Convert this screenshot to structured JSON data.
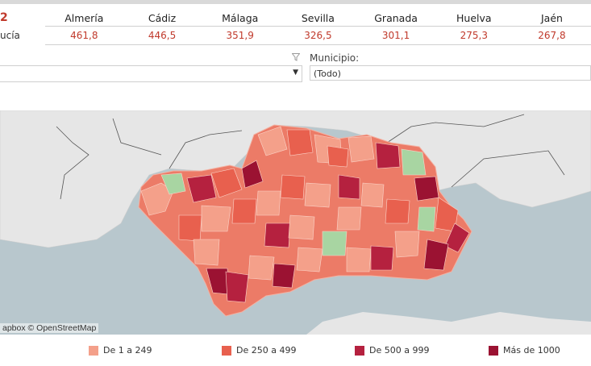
{
  "summary": {
    "value_fragment": "2",
    "region_fragment": "ucía"
  },
  "provinces": [
    {
      "name": "Almería",
      "value": "461,8"
    },
    {
      "name": "Cádiz",
      "value": "446,5"
    },
    {
      "name": "Málaga",
      "value": "351,9"
    },
    {
      "name": "Sevilla",
      "value": "326,5"
    },
    {
      "name": "Granada",
      "value": "301,1"
    },
    {
      "name": "Huelva",
      "value": "275,3"
    },
    {
      "name": "Jaén",
      "value": "267,8"
    }
  ],
  "filters": {
    "municipio_label": "Municipio:",
    "municipio_value": "(Todo)"
  },
  "map": {
    "attribution": "apbox © OpenStreetMap"
  },
  "legend": [
    {
      "label": "De 1 a 249",
      "color": "#f4a08a"
    },
    {
      "label": "De 250 a 499",
      "color": "#e8604e"
    },
    {
      "label": "De 500 a 999",
      "color": "#b5213f"
    },
    {
      "label": "Más de 1000",
      "color": "#9b1232"
    }
  ],
  "colors": {
    "accent": "#c0392b",
    "sea": "#b8c7cd",
    "land": "#e6e6e6",
    "low": "#a8d5a2"
  },
  "icons": {
    "filter": "funnel-icon",
    "dropdown": "triangle-down-icon"
  }
}
